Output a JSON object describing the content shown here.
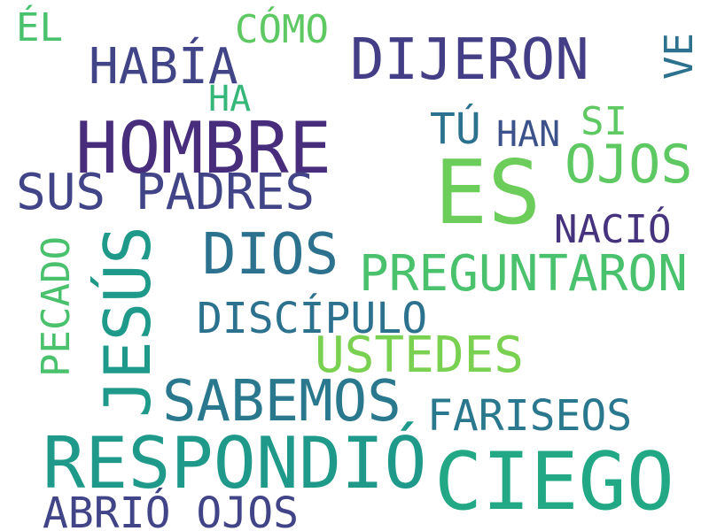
{
  "words": {
    "el": {
      "text": "ÉL",
      "color": "#4ac16d"
    },
    "como": {
      "text": "CÓMO",
      "color": "#5ec962"
    },
    "habia": {
      "text": "HABÍA",
      "color": "#414487"
    },
    "dijeron": {
      "text": "DIJERON",
      "color": "#433e85"
    },
    "ve": {
      "text": "VE",
      "color": "#2c728e"
    },
    "ha": {
      "text": "HA",
      "color": "#35b779"
    },
    "hombre": {
      "text": "HOMBRE",
      "color": "#472d7b"
    },
    "tu": {
      "text": "TÚ",
      "color": "#2c728e"
    },
    "han": {
      "text": "HAN",
      "color": "#3b528b"
    },
    "si": {
      "text": "SI",
      "color": "#5ec962"
    },
    "ojos": {
      "text": "OJOS",
      "color": "#5ec962"
    },
    "sus_padres": {
      "text": "SUS PADRES",
      "color": "#414487"
    },
    "es": {
      "text": "ES",
      "color": "#6ccd5a"
    },
    "pecado": {
      "text": "PECADO",
      "color": "#4ac16d"
    },
    "jesus": {
      "text": "JESÚS",
      "color": "#1f9a8a"
    },
    "dios": {
      "text": "DIOS",
      "color": "#2c728e"
    },
    "nacio": {
      "text": "NACIÓ",
      "color": "#46337e"
    },
    "preguntaron": {
      "text": "PREGUNTARON",
      "color": "#4ac16d"
    },
    "discipulo": {
      "text": "DISCÍPULO",
      "color": "#2c728e"
    },
    "ustedes": {
      "text": "USTEDES",
      "color": "#7ad151"
    },
    "sabemos": {
      "text": "SABEMOS",
      "color": "#2a788e"
    },
    "fariseos": {
      "text": "FARISEOS",
      "color": "#2a788e"
    },
    "respondio": {
      "text": "RESPONDIÓ",
      "color": "#1f9a8a"
    },
    "ciego": {
      "text": "CIEGO",
      "color": "#22a884"
    },
    "abrio_ojos": {
      "text": "ABRIÓ OJOS",
      "color": "#414487"
    }
  }
}
